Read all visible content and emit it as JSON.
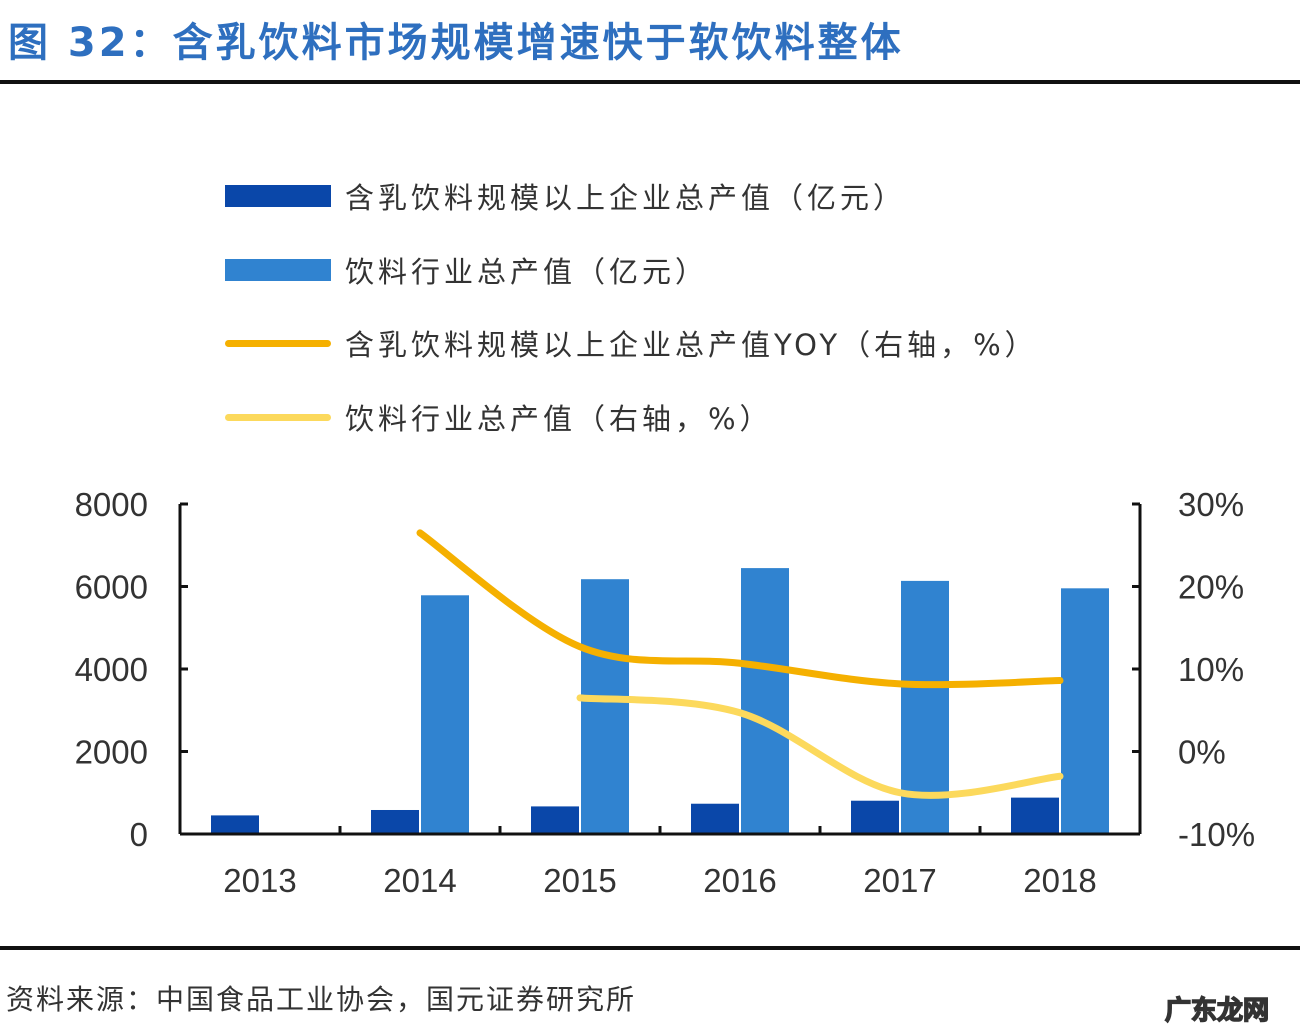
{
  "title": "图 32：含乳饮料市场规模增速快于软饮料整体",
  "source": "资料来源：中国食品工业协会，国元证券研究所",
  "watermark": "广东龙网",
  "chart_data": {
    "type": "bar",
    "title": "图 32：含乳饮料市场规模增速快于软饮料整体",
    "categories": [
      "2013",
      "2014",
      "2015",
      "2016",
      "2017",
      "2018"
    ],
    "left_axis": {
      "ylim": [
        0,
        8000
      ],
      "ticks": [
        "0",
        "2000",
        "4000",
        "6000",
        "8000"
      ],
      "tick_values": [
        0,
        2000,
        4000,
        6000,
        8000
      ]
    },
    "right_axis": {
      "ylim": [
        -10,
        30
      ],
      "ticks": [
        "-10%",
        "0%",
        "10%",
        "20%",
        "30%"
      ],
      "tick_values": [
        -10,
        0,
        10,
        20,
        30
      ]
    },
    "legend_placement": "top",
    "grid": false,
    "series": [
      {
        "name": "含乳饮料规模以上企业总产值（亿元）",
        "kind": "bar",
        "axis": "left",
        "color": "#0a47a9",
        "values": [
          451,
          582,
          669,
          734,
          807,
          882
        ]
      },
      {
        "name": "饮料行业总产值（亿元）",
        "kind": "bar",
        "axis": "left",
        "color": "#3083d0",
        "values": [
          null,
          5787,
          6177,
          6446,
          6136,
          5956
        ]
      },
      {
        "name": "含乳饮料规模以上企业总产值YOY（右轴，%）",
        "kind": "line",
        "axis": "right",
        "color": "#f5b000",
        "values": [
          null,
          26.5,
          12.7,
          10.7,
          8.2,
          8.6
        ]
      },
      {
        "name": "饮料行业总产值（右轴，%）",
        "kind": "line",
        "axis": "right",
        "color": "#fcd95c",
        "values": [
          null,
          null,
          6.5,
          4.7,
          -5.0,
          -3.0
        ]
      }
    ]
  }
}
